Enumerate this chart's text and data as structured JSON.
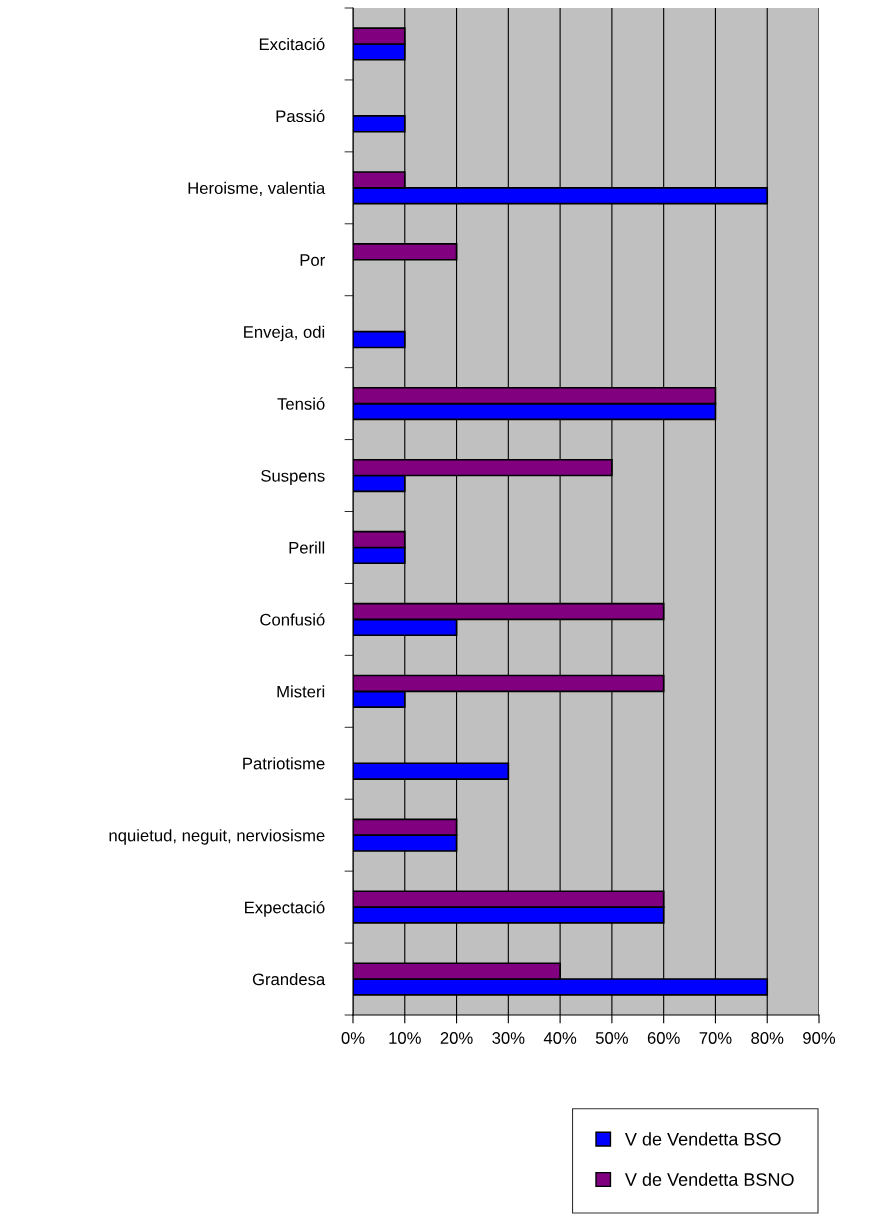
{
  "chart_data": {
    "type": "bar",
    "orientation": "horizontal",
    "categories": [
      "Excitació",
      "Passió",
      "Heroisme, valentia",
      "Por",
      "Enveja, odi",
      "Tensió",
      "Suspens",
      "Perill",
      "Confusió",
      "Misteri",
      "Patriotisme",
      "nquietud, neguit, nerviosisme",
      "Expectació",
      "Grandesa"
    ],
    "series": [
      {
        "name": "V de Vendetta BSO",
        "color": "#0000ff",
        "values": [
          10,
          10,
          80,
          null,
          10,
          70,
          10,
          10,
          20,
          10,
          30,
          20,
          60,
          80
        ]
      },
      {
        "name": "V de Vendetta BSNO",
        "color": "#800080",
        "values": [
          10,
          null,
          10,
          20,
          null,
          70,
          50,
          10,
          60,
          60,
          null,
          20,
          60,
          40
        ]
      }
    ],
    "xlim": [
      0,
      90
    ],
    "xticks": [
      {
        "value": 0,
        "label": "0%"
      },
      {
        "value": 10,
        "label": "10%"
      },
      {
        "value": 20,
        "label": "20%"
      },
      {
        "value": 30,
        "label": "30%"
      },
      {
        "value": 40,
        "label": "40%"
      },
      {
        "value": 50,
        "label": "50%"
      },
      {
        "value": 60,
        "label": "60%"
      },
      {
        "value": 70,
        "label": "70%"
      },
      {
        "value": 80,
        "label": "80%"
      },
      {
        "value": 90,
        "label": "90%"
      }
    ],
    "grid": "x",
    "legend": "bottom right"
  }
}
